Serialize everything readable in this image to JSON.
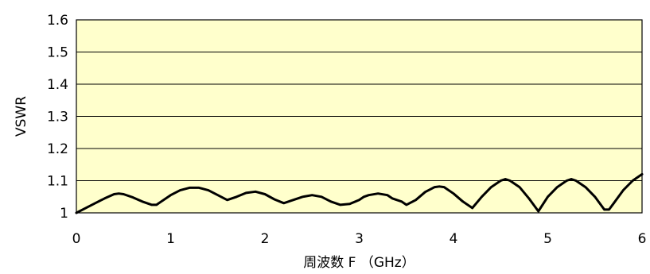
{
  "chart_data": {
    "type": "line",
    "xlabel": "周波数 F （GHz）",
    "ylabel": "VSWR",
    "xlim": [
      0,
      6
    ],
    "ylim": [
      1,
      1.6
    ],
    "x_ticks": [
      "0",
      "1",
      "2",
      "3",
      "4",
      "5",
      "6"
    ],
    "y_ticks": [
      "1",
      "1.1",
      "1.2",
      "1.3",
      "1.4",
      "1.5",
      "1.6"
    ],
    "grid": "horizontal",
    "plot_background": "#FFFFCC",
    "line_color": "#000000",
    "series": [
      {
        "x": [
          0,
          0.1,
          0.2,
          0.3,
          0.4,
          0.45,
          0.5,
          0.6,
          0.7,
          0.8,
          0.85,
          0.9,
          1.0,
          1.1,
          1.2,
          1.3,
          1.4,
          1.5,
          1.6,
          1.7,
          1.8,
          1.9,
          2.0,
          2.1,
          2.2,
          2.3,
          2.4,
          2.5,
          2.6,
          2.7,
          2.8,
          2.9,
          3.0,
          3.05,
          3.1,
          3.2,
          3.3,
          3.35,
          3.4,
          3.45,
          3.5,
          3.6,
          3.7,
          3.8,
          3.85,
          3.9,
          4.0,
          4.1,
          4.2,
          4.3,
          4.4,
          4.5,
          4.55,
          4.6,
          4.7,
          4.8,
          4.9,
          5.0,
          5.1,
          5.2,
          5.25,
          5.3,
          5.4,
          5.5,
          5.6,
          5.65,
          5.7,
          5.8,
          5.9,
          6.0
        ],
        "y": [
          1.0,
          1.015,
          1.03,
          1.045,
          1.058,
          1.06,
          1.058,
          1.048,
          1.035,
          1.025,
          1.025,
          1.035,
          1.055,
          1.07,
          1.078,
          1.078,
          1.07,
          1.055,
          1.04,
          1.05,
          1.062,
          1.066,
          1.058,
          1.042,
          1.03,
          1.04,
          1.05,
          1.055,
          1.05,
          1.035,
          1.025,
          1.028,
          1.04,
          1.05,
          1.055,
          1.06,
          1.055,
          1.045,
          1.04,
          1.035,
          1.025,
          1.04,
          1.065,
          1.08,
          1.082,
          1.08,
          1.06,
          1.035,
          1.015,
          1.05,
          1.08,
          1.1,
          1.105,
          1.1,
          1.08,
          1.045,
          1.005,
          1.05,
          1.08,
          1.1,
          1.105,
          1.1,
          1.08,
          1.05,
          1.01,
          1.01,
          1.03,
          1.07,
          1.1,
          1.12
        ]
      }
    ]
  }
}
